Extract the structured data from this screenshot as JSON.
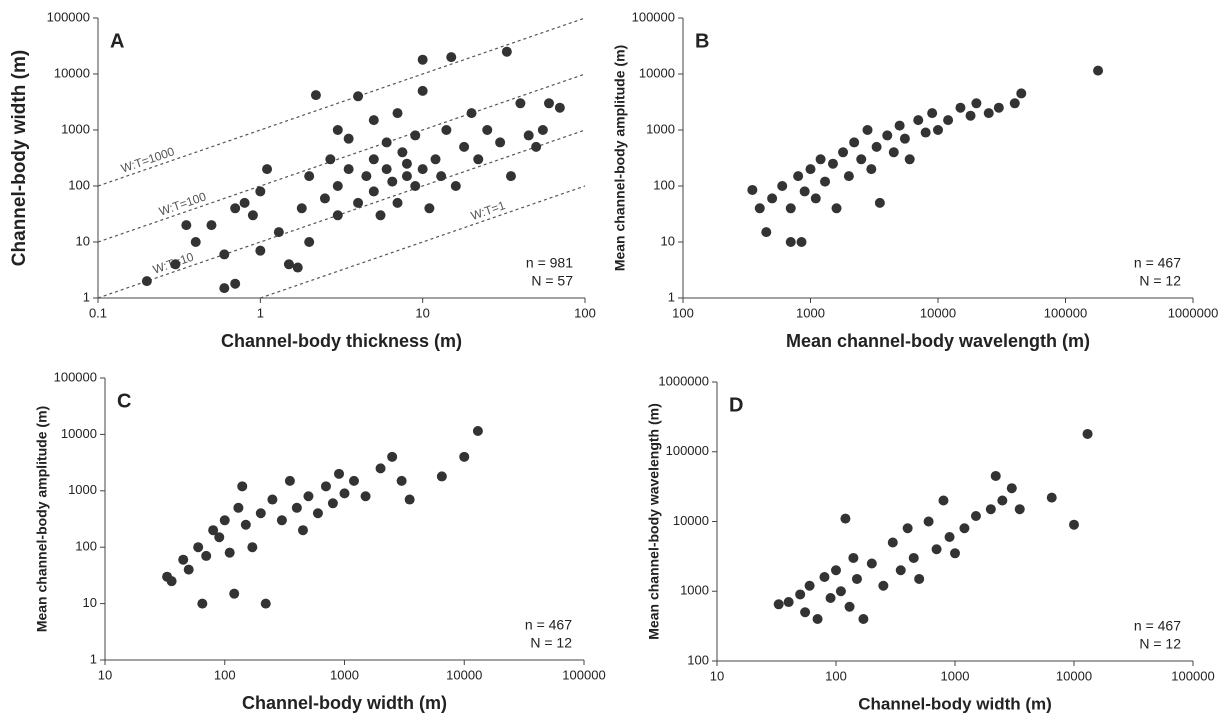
{
  "chart_data": [
    {
      "type": "scatter",
      "title": "A",
      "x_label": "Channel-body thickness (m)",
      "y_label": "Channel-body width (m)",
      "log_x": true,
      "log_y": true,
      "xlim": [
        0.1,
        100
      ],
      "ylim": [
        1,
        100000
      ],
      "xticks": [
        0.1,
        1,
        10,
        100
      ],
      "yticks": [
        1,
        10,
        100,
        1000,
        10000,
        100000
      ],
      "color": "#333333",
      "annotations": [
        "n = 981",
        "N = 57"
      ],
      "ratio_lines": [
        {
          "value": 1000,
          "label": "W:T=1000"
        },
        {
          "value": 100,
          "label": "W:T=100"
        },
        {
          "value": 10,
          "label": "W:T=10"
        },
        {
          "value": 1,
          "label": "W:T=1"
        }
      ],
      "x": [
        0.2,
        0.3,
        0.35,
        0.4,
        0.5,
        0.6,
        0.6,
        0.7,
        0.7,
        0.8,
        0.9,
        1,
        1,
        1.1,
        1.3,
        1.5,
        1.7,
        1.8,
        2,
        2,
        2.2,
        2.5,
        2.7,
        3,
        3,
        3,
        3.5,
        3.5,
        4,
        4,
        4.5,
        5,
        5,
        5,
        5.5,
        6,
        6,
        6.5,
        7,
        7,
        7.5,
        8,
        8,
        9,
        9,
        10,
        10,
        10,
        11,
        12,
        13,
        14,
        15,
        16,
        18,
        20,
        22,
        25,
        30,
        33,
        35,
        40,
        45,
        50,
        55,
        60,
        70
      ],
      "values": [
        2,
        4,
        20,
        10,
        20,
        1.5,
        6,
        1.8,
        40,
        50,
        30,
        80,
        7,
        200,
        15,
        4,
        3.5,
        40,
        150,
        10,
        4200,
        60,
        300,
        1000,
        100,
        30,
        700,
        200,
        50,
        4000,
        150,
        300,
        80,
        1500,
        30,
        200,
        600,
        120,
        50,
        2000,
        400,
        150,
        250,
        100,
        800,
        18000,
        200,
        5000,
        40,
        300,
        150,
        1000,
        20000,
        100,
        500,
        2000,
        300,
        1000,
        600,
        25000,
        150,
        3000,
        800,
        500,
        1000,
        3000,
        2500
      ]
    },
    {
      "type": "scatter",
      "title": "B",
      "x_label": "Mean channel-body wavelength (m)",
      "y_label": "Mean channel-body amplitude (m)",
      "log_x": true,
      "log_y": true,
      "xlim": [
        100,
        1000000
      ],
      "ylim": [
        1,
        100000
      ],
      "xticks": [
        100,
        1000,
        10000,
        100000,
        1000000
      ],
      "yticks": [
        1,
        10,
        100,
        1000,
        10000,
        100000
      ],
      "color": "#333333",
      "annotations": [
        "n = 467",
        "N = 12"
      ],
      "x": [
        350,
        400,
        450,
        500,
        600,
        700,
        700,
        800,
        850,
        900,
        1000,
        1100,
        1200,
        1300,
        1500,
        1600,
        1800,
        2000,
        2200,
        2500,
        2800,
        3000,
        3300,
        3500,
        4000,
        4500,
        5000,
        5500,
        6000,
        7000,
        8000,
        9000,
        10000,
        12000,
        15000,
        18000,
        20000,
        25000,
        30000,
        40000,
        45000,
        180000
      ],
      "values": [
        85,
        40,
        15,
        60,
        100,
        10,
        40,
        150,
        10,
        80,
        200,
        60,
        300,
        120,
        250,
        40,
        400,
        150,
        600,
        300,
        1000,
        200,
        500,
        50,
        800,
        400,
        1200,
        700,
        300,
        1500,
        900,
        2000,
        1000,
        1500,
        2500,
        1800,
        3000,
        2000,
        2500,
        3000,
        4500,
        11500
      ]
    },
    {
      "type": "scatter",
      "title": "C",
      "x_label": "Channel-body width (m)",
      "y_label": "Mean channel-body amplitude (m)",
      "log_x": true,
      "log_y": true,
      "xlim": [
        10,
        100000
      ],
      "ylim": [
        1,
        100000
      ],
      "xticks": [
        10,
        100,
        1000,
        10000,
        100000
      ],
      "yticks": [
        1,
        10,
        100,
        1000,
        10000,
        100000
      ],
      "color": "#333333",
      "annotations": [
        "n = 467",
        "N = 12"
      ],
      "x": [
        33,
        36,
        45,
        50,
        60,
        65,
        70,
        80,
        90,
        100,
        110,
        120,
        130,
        140,
        150,
        170,
        200,
        220,
        250,
        300,
        350,
        400,
        450,
        500,
        600,
        700,
        800,
        900,
        1000,
        1200,
        1500,
        2000,
        2500,
        3000,
        3500,
        6500,
        10000,
        13000
      ],
      "values": [
        30,
        25,
        60,
        40,
        100,
        10,
        70,
        200,
        150,
        300,
        80,
        15,
        500,
        1200,
        250,
        100,
        400,
        10,
        700,
        300,
        1500,
        500,
        200,
        800,
        400,
        1200,
        600,
        2000,
        900,
        1500,
        800,
        2500,
        4000,
        1500,
        700,
        1800,
        4000,
        11500
      ]
    },
    {
      "type": "scatter",
      "title": "D",
      "x_label": "Channel-body width (m)",
      "y_label": "Mean channel-body wavelength (m)",
      "log_x": true,
      "log_y": true,
      "xlim": [
        10,
        100000
      ],
      "ylim": [
        100,
        1000000
      ],
      "xticks": [
        10,
        100,
        1000,
        10000,
        100000
      ],
      "yticks": [
        100,
        1000,
        10000,
        100000,
        1000000
      ],
      "color": "#333333",
      "annotations": [
        "n = 467",
        "N = 12"
      ],
      "x": [
        33,
        40,
        50,
        55,
        60,
        70,
        80,
        90,
        100,
        110,
        120,
        130,
        140,
        150,
        170,
        200,
        250,
        300,
        350,
        400,
        450,
        500,
        600,
        700,
        800,
        900,
        1000,
        1200,
        1500,
        2000,
        2200,
        2500,
        3000,
        3500,
        6500,
        10000,
        13000
      ],
      "values": [
        650,
        700,
        900,
        500,
        1200,
        400,
        1600,
        800,
        2000,
        1000,
        11000,
        600,
        3000,
        1500,
        400,
        2500,
        1200,
        5000,
        2000,
        8000,
        3000,
        1500,
        10000,
        4000,
        20000,
        6000,
        3500,
        8000,
        12000,
        15000,
        45000,
        20000,
        30000,
        15000,
        22000,
        9000,
        180000
      ]
    }
  ]
}
